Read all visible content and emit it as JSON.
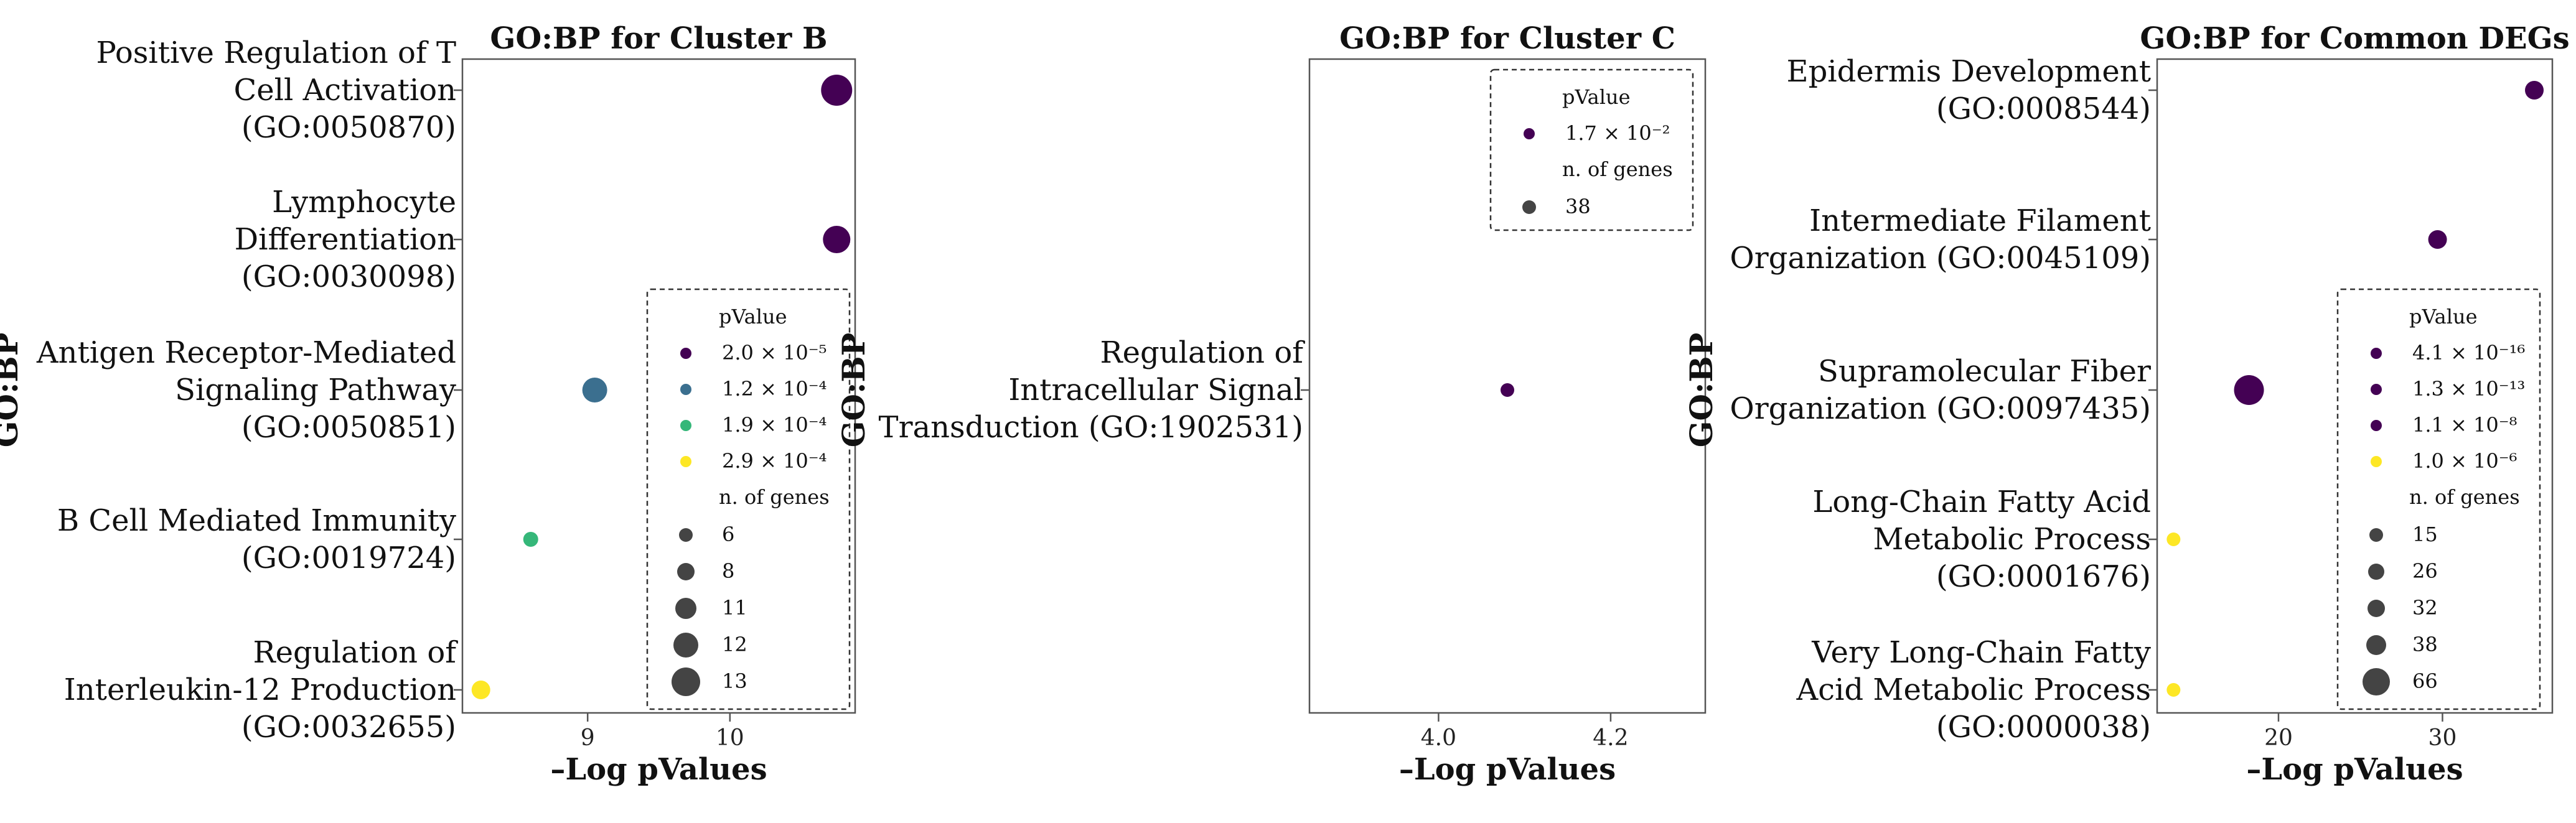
{
  "chart_data": [
    {
      "type": "scatter",
      "title": "GO:BP for Cluster B",
      "xlabel": "–Log pValues",
      "ylabel": "GO:BP",
      "xlim": [
        8.12,
        10.88
      ],
      "xticks": [
        9,
        10
      ],
      "grid": false,
      "legend_position": "lower-right",
      "points": [
        {
          "term": "Positive Regulation of T Cell Activation (GO:0050870)",
          "lines": [
            "Positive Regulation of T",
            "Cell Activation",
            "(GO:0050870)"
          ],
          "x": 10.75,
          "n_genes": 13,
          "pvalue": "2.0 × 10⁻⁵",
          "color": "#440154"
        },
        {
          "term": "Lymphocyte Differentiation (GO:0030098)",
          "lines": [
            "Lymphocyte",
            "Differentiation",
            "(GO:0030098)"
          ],
          "x": 10.75,
          "n_genes": 12,
          "pvalue": "2.0 × 10⁻⁵",
          "color": "#440154"
        },
        {
          "term": "Antigen Receptor-Mediated Signaling Pathway (GO:0050851)",
          "lines": [
            "Antigen Receptor-Mediated",
            "Signaling Pathway",
            "(GO:0050851)"
          ],
          "x": 9.05,
          "n_genes": 11,
          "pvalue": "1.2 × 10⁻⁴",
          "color": "#3b6f8f"
        },
        {
          "term": "B Cell Mediated Immunity (GO:0019724)",
          "lines": [
            "B Cell Mediated Immunity",
            "(GO:0019724)"
          ],
          "x": 8.6,
          "n_genes": 6,
          "pvalue": "1.9 × 10⁻⁴",
          "color": "#35b779"
        },
        {
          "term": "Regulation of Interleukin-12 Production (GO:0032655)",
          "lines": [
            "Regulation of",
            "Interleukin-12 Production",
            "(GO:0032655)"
          ],
          "x": 8.25,
          "n_genes": 8,
          "pvalue": "2.9 × 10⁻⁴",
          "color": "#fde725"
        }
      ],
      "legend": {
        "pvalue_title": "pValue",
        "pvalue_entries": [
          {
            "label": "2.0 × 10⁻⁵",
            "color": "#440154"
          },
          {
            "label": "1.2 × 10⁻⁴",
            "color": "#3b6f8f"
          },
          {
            "label": "1.9 × 10⁻⁴",
            "color": "#35b779"
          },
          {
            "label": "2.9 × 10⁻⁴",
            "color": "#fde725"
          }
        ],
        "size_title": "n. of genes",
        "size_entries": [
          6,
          8,
          11,
          12,
          13
        ]
      }
    },
    {
      "type": "scatter",
      "title": "GO:BP for Cluster C",
      "xlabel": "–Log pValues",
      "ylabel": "GO:BP",
      "xlim": [
        3.85,
        4.31
      ],
      "xticks": [
        4.0,
        4.2
      ],
      "grid": false,
      "legend_position": "upper-right",
      "points": [
        {
          "term": "Regulation of Intracellular Signal Transduction (GO:1902531)",
          "lines": [
            "Regulation of",
            "Intracellular Signal",
            "Transduction (GO:1902531)"
          ],
          "x": 4.08,
          "n_genes": 38,
          "pvalue": "1.7 × 10⁻²",
          "color": "#440154"
        }
      ],
      "legend": {
        "pvalue_title": "pValue",
        "pvalue_entries": [
          {
            "label": "1.7 × 10⁻²",
            "color": "#440154"
          }
        ],
        "size_title": "n. of genes",
        "size_entries": [
          38
        ]
      }
    },
    {
      "type": "scatter",
      "title": "GO:BP for Common DEGs",
      "xlabel": "–Log pValues",
      "ylabel": "GO:BP",
      "xlim": [
        12.6,
        36.7
      ],
      "xticks": [
        20,
        30
      ],
      "grid": false,
      "legend_position": "lower-right",
      "points": [
        {
          "term": "Epidermis Development (GO:0008544)",
          "lines": [
            "Epidermis Development",
            "(GO:0008544)"
          ],
          "x": 35.6,
          "n_genes": 26,
          "pvalue": "4.1 × 10⁻¹⁶",
          "color": "#440154"
        },
        {
          "term": "Intermediate Filament Organization (GO:0045109)",
          "lines": [
            "Intermediate Filament",
            "Organization (GO:0045109)"
          ],
          "x": 29.7,
          "n_genes": 26,
          "pvalue": "1.3 × 10⁻¹³",
          "color": "#440154"
        },
        {
          "term": "Supramolecular Fiber Organization (GO:0097435)",
          "lines": [
            "Supramolecular Fiber",
            "Organization (GO:0097435)"
          ],
          "x": 18.2,
          "n_genes": 66,
          "pvalue": "1.1 × 10⁻⁸",
          "color": "#440154"
        },
        {
          "term": "Long-Chain Fatty Acid Metabolic Process (GO:0001676)",
          "lines": [
            "Long-Chain Fatty Acid",
            "Metabolic Process",
            "(GO:0001676)"
          ],
          "x": 13.6,
          "n_genes": 15,
          "pvalue": "1.0 × 10⁻⁶",
          "color": "#fde725"
        },
        {
          "term": "Very Long-Chain Fatty Acid Metabolic Process (GO:0000038)",
          "lines": [
            "Very Long-Chain Fatty",
            "Acid Metabolic Process",
            "(GO:0000038)"
          ],
          "x": 13.6,
          "n_genes": 15,
          "pvalue": "1.0 × 10⁻⁶",
          "color": "#fde725"
        }
      ],
      "legend": {
        "pvalue_title": "pValue",
        "pvalue_entries": [
          {
            "label": "4.1 × 10⁻¹⁶",
            "color": "#440154"
          },
          {
            "label": "1.3 × 10⁻¹³",
            "color": "#440154"
          },
          {
            "label": "1.1 × 10⁻⁸",
            "color": "#440154"
          },
          {
            "label": "1.0 × 10⁻⁶",
            "color": "#fde725"
          }
        ],
        "size_title": "n. of genes",
        "size_entries": [
          15,
          26,
          32,
          38,
          66
        ]
      }
    }
  ]
}
